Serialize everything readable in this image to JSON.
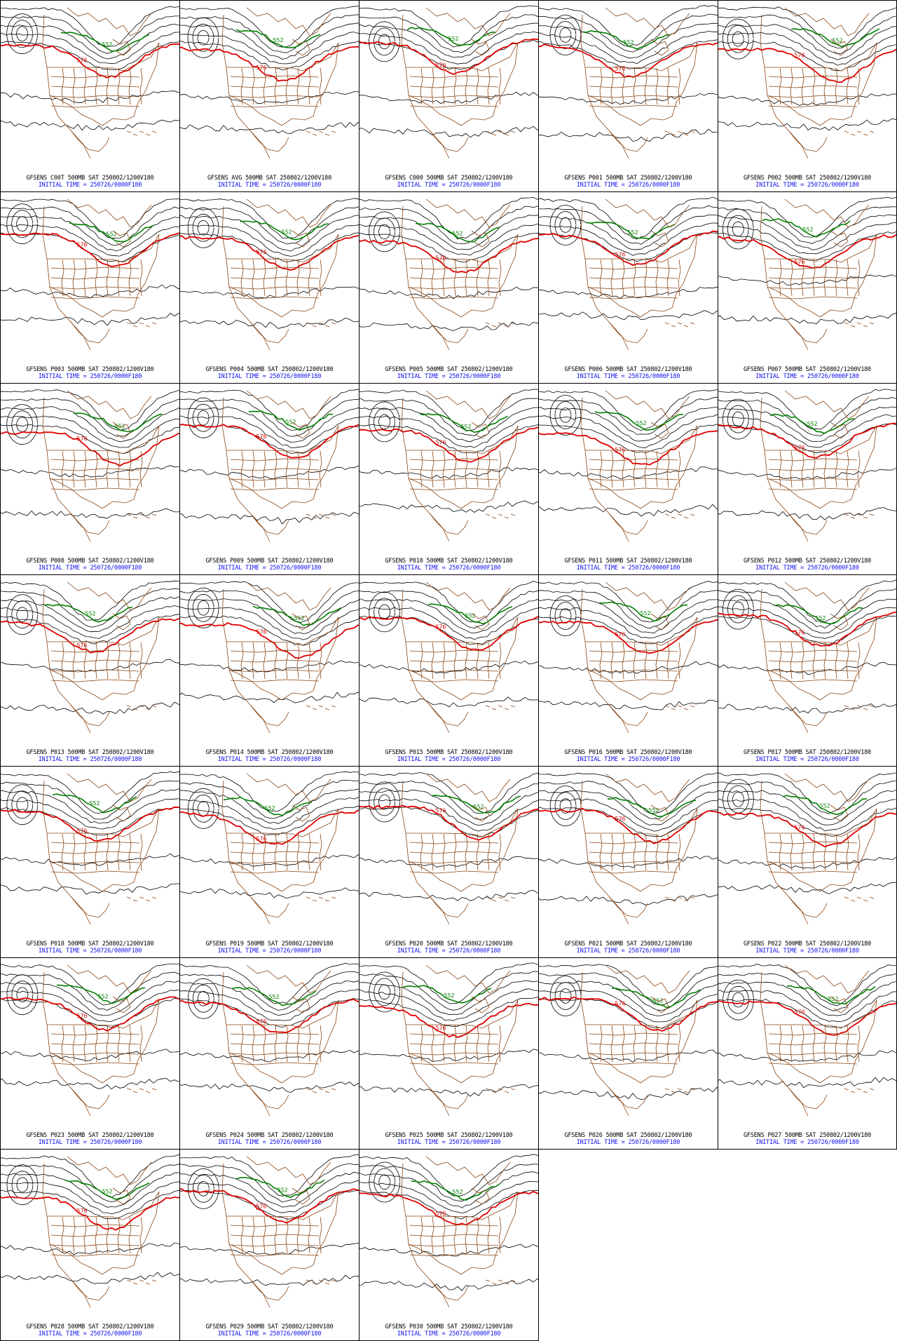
{
  "figure": {
    "product": "GFS ensemble 500mb height forecast panels",
    "colors": {
      "background": "#ffffff",
      "border": "#000000",
      "contour": "#000000",
      "contour_576": "#e00000",
      "contour_552": "#008000",
      "low_center_blue": "#3080ff",
      "map_boundaries": "#8b4513",
      "initial_time_text": "#1010ee"
    },
    "contour_labels": {
      "warm": "576",
      "cold": "552"
    }
  },
  "panels": [
    {
      "member": "C00T",
      "title": "GFSENS C00T 500MB SAT 250802/1200V180",
      "init": "INITIAL TIME = 250726/0000F180"
    },
    {
      "member": "AVG",
      "title": "GFSENS AVG 500MB SAT 250802/1200V180",
      "init": "INITIAL TIME = 250726/0000F180"
    },
    {
      "member": "C000",
      "title": "GFSENS C000 500MB SAT 250802/1200V180",
      "init": "INITIAL TIME = 250726/0000F180"
    },
    {
      "member": "P001",
      "title": "GFSENS P001 500MB SAT 250802/1200V180",
      "init": "INITIAL TIME = 250726/0000F180"
    },
    {
      "member": "P002",
      "title": "GFSENS P002 500MB SAT 250802/1200V180",
      "init": "INITIAL TIME = 250726/0000F180"
    },
    {
      "member": "P003",
      "title": "GFSENS P003 500MB SAT 250802/1200V180",
      "init": "INITIAL TIME = 250726/0000F180"
    },
    {
      "member": "P004",
      "title": "GFSENS P004 500MB SAT 250802/1200V180",
      "init": "INITIAL TIME = 250726/0000F180"
    },
    {
      "member": "P005",
      "title": "GFSENS P005 500MB SAT 250802/1200V180",
      "init": "INITIAL TIME = 250726/0000F180"
    },
    {
      "member": "P006",
      "title": "GFSENS P006 500MB SAT 250802/1200V180",
      "init": "INITIAL TIME = 250726/0000F180"
    },
    {
      "member": "P007",
      "title": "GFSENS P007 500MB SAT 250802/1200V180",
      "init": "INITIAL TIME = 250726/0000F180"
    },
    {
      "member": "P008",
      "title": "GFSENS P008 500MB SAT 250802/1200V180",
      "init": "INITIAL TIME = 250726/0000F180"
    },
    {
      "member": "P009",
      "title": "GFSENS P009 500MB SAT 250802/1200V180",
      "init": "INITIAL TIME = 250726/0000F180"
    },
    {
      "member": "P010",
      "title": "GFSENS P010 500MB SAT 250802/1200V180",
      "init": "INITIAL TIME = 250726/0000F180"
    },
    {
      "member": "P011",
      "title": "GFSENS P011 500MB SAT 250802/1200V180",
      "init": "INITIAL TIME = 250726/0000F180"
    },
    {
      "member": "P012",
      "title": "GFSENS P012 500MB SAT 250802/1200V180",
      "init": "INITIAL TIME = 250726/0000F180"
    },
    {
      "member": "P013",
      "title": "GFSENS P013 500MB SAT 250802/1200V180",
      "init": "INITIAL TIME = 250726/0000F180"
    },
    {
      "member": "P014",
      "title": "GFSENS P014 500MB SAT 250802/1200V180",
      "init": "INITIAL TIME = 250726/0000F180"
    },
    {
      "member": "P015",
      "title": "GFSENS P015 500MB SAT 250802/1200V180",
      "init": "INITIAL TIME = 250726/0000F180"
    },
    {
      "member": "P016",
      "title": "GFSENS P016 500MB SAT 250802/1200V180",
      "init": "INITIAL TIME = 250726/0000F180"
    },
    {
      "member": "P017",
      "title": "GFSENS P017 500MB SAT 250802/1200V180",
      "init": "INITIAL TIME = 250726/0000F180"
    },
    {
      "member": "P018",
      "title": "GFSENS P018 500MB SAT 250802/1200V180",
      "init": "INITIAL TIME = 250726/0000F180"
    },
    {
      "member": "P019",
      "title": "GFSENS P019 500MB SAT 250802/1200V180",
      "init": "INITIAL TIME = 250726/0000F180"
    },
    {
      "member": "P020",
      "title": "GFSENS P020 500MB SAT 250802/1200V180",
      "init": "INITIAL TIME = 250726/0000F180"
    },
    {
      "member": "P021",
      "title": "GFSENS P021 500MB SAT 250802/1200V180",
      "init": "INITIAL TIME = 250726/0000F180"
    },
    {
      "member": "P022",
      "title": "GFSENS P022 500MB SAT 250802/1200V180",
      "init": "INITIAL TIME = 250726/0000F180"
    },
    {
      "member": "P023",
      "title": "GFSENS P023 500MB SAT 250802/1200V180",
      "init": "INITIAL TIME = 250726/0000F180"
    },
    {
      "member": "P024",
      "title": "GFSENS P024 500MB SAT 250802/1200V180",
      "init": "INITIAL TIME = 250726/0000F180"
    },
    {
      "member": "P025",
      "title": "GFSENS P025 500MB SAT 250802/1200V180",
      "init": "INITIAL TIME = 250726/0000F180"
    },
    {
      "member": "P026",
      "title": "GFSENS P026 500MB SAT 250802/1200V180",
      "init": "INITIAL TIME = 250726/0000F180"
    },
    {
      "member": "P027",
      "title": "GFSENS P027 500MB SAT 250802/1200V180",
      "init": "INITIAL TIME = 250726/0000F180"
    },
    {
      "member": "P028",
      "title": "GFSENS P028 500MB SAT 250802/1200V180",
      "init": "INITIAL TIME = 250726/0000F180"
    },
    {
      "member": "P029",
      "title": "GFSENS P029 500MB SAT 250802/1200V180",
      "init": "INITIAL TIME = 250726/0000F180"
    },
    {
      "member": "P030",
      "title": "GFSENS P030 500MB SAT 250802/1200V180",
      "init": "INITIAL TIME = 250726/0000F180"
    }
  ]
}
